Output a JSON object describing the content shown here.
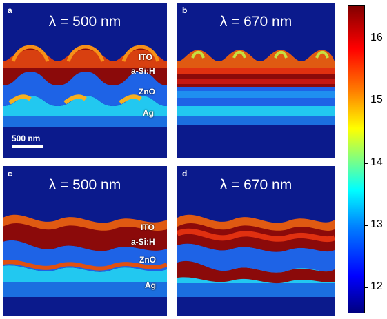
{
  "panels": [
    {
      "letter": "a",
      "wavelength": "λ = 500 nm"
    },
    {
      "letter": "b",
      "wavelength": "λ = 670 nm"
    },
    {
      "letter": "c",
      "wavelength": "λ = 500 nm"
    },
    {
      "letter": "d",
      "wavelength": "λ = 670 nm"
    }
  ],
  "layers": [
    "ITO",
    "a-Si:H",
    "ZnO",
    "Ag"
  ],
  "scale_bar": "500 nm",
  "colorbar": {
    "ticks": [
      "16",
      "15",
      "14",
      "13",
      "12"
    ],
    "colors": [
      "#00007f",
      "#0000ff",
      "#0080ff",
      "#00ffff",
      "#ffff00",
      "#ff8000",
      "#ff0000",
      "#800000"
    ]
  },
  "colors": {
    "background": "#0b1a8c"
  }
}
